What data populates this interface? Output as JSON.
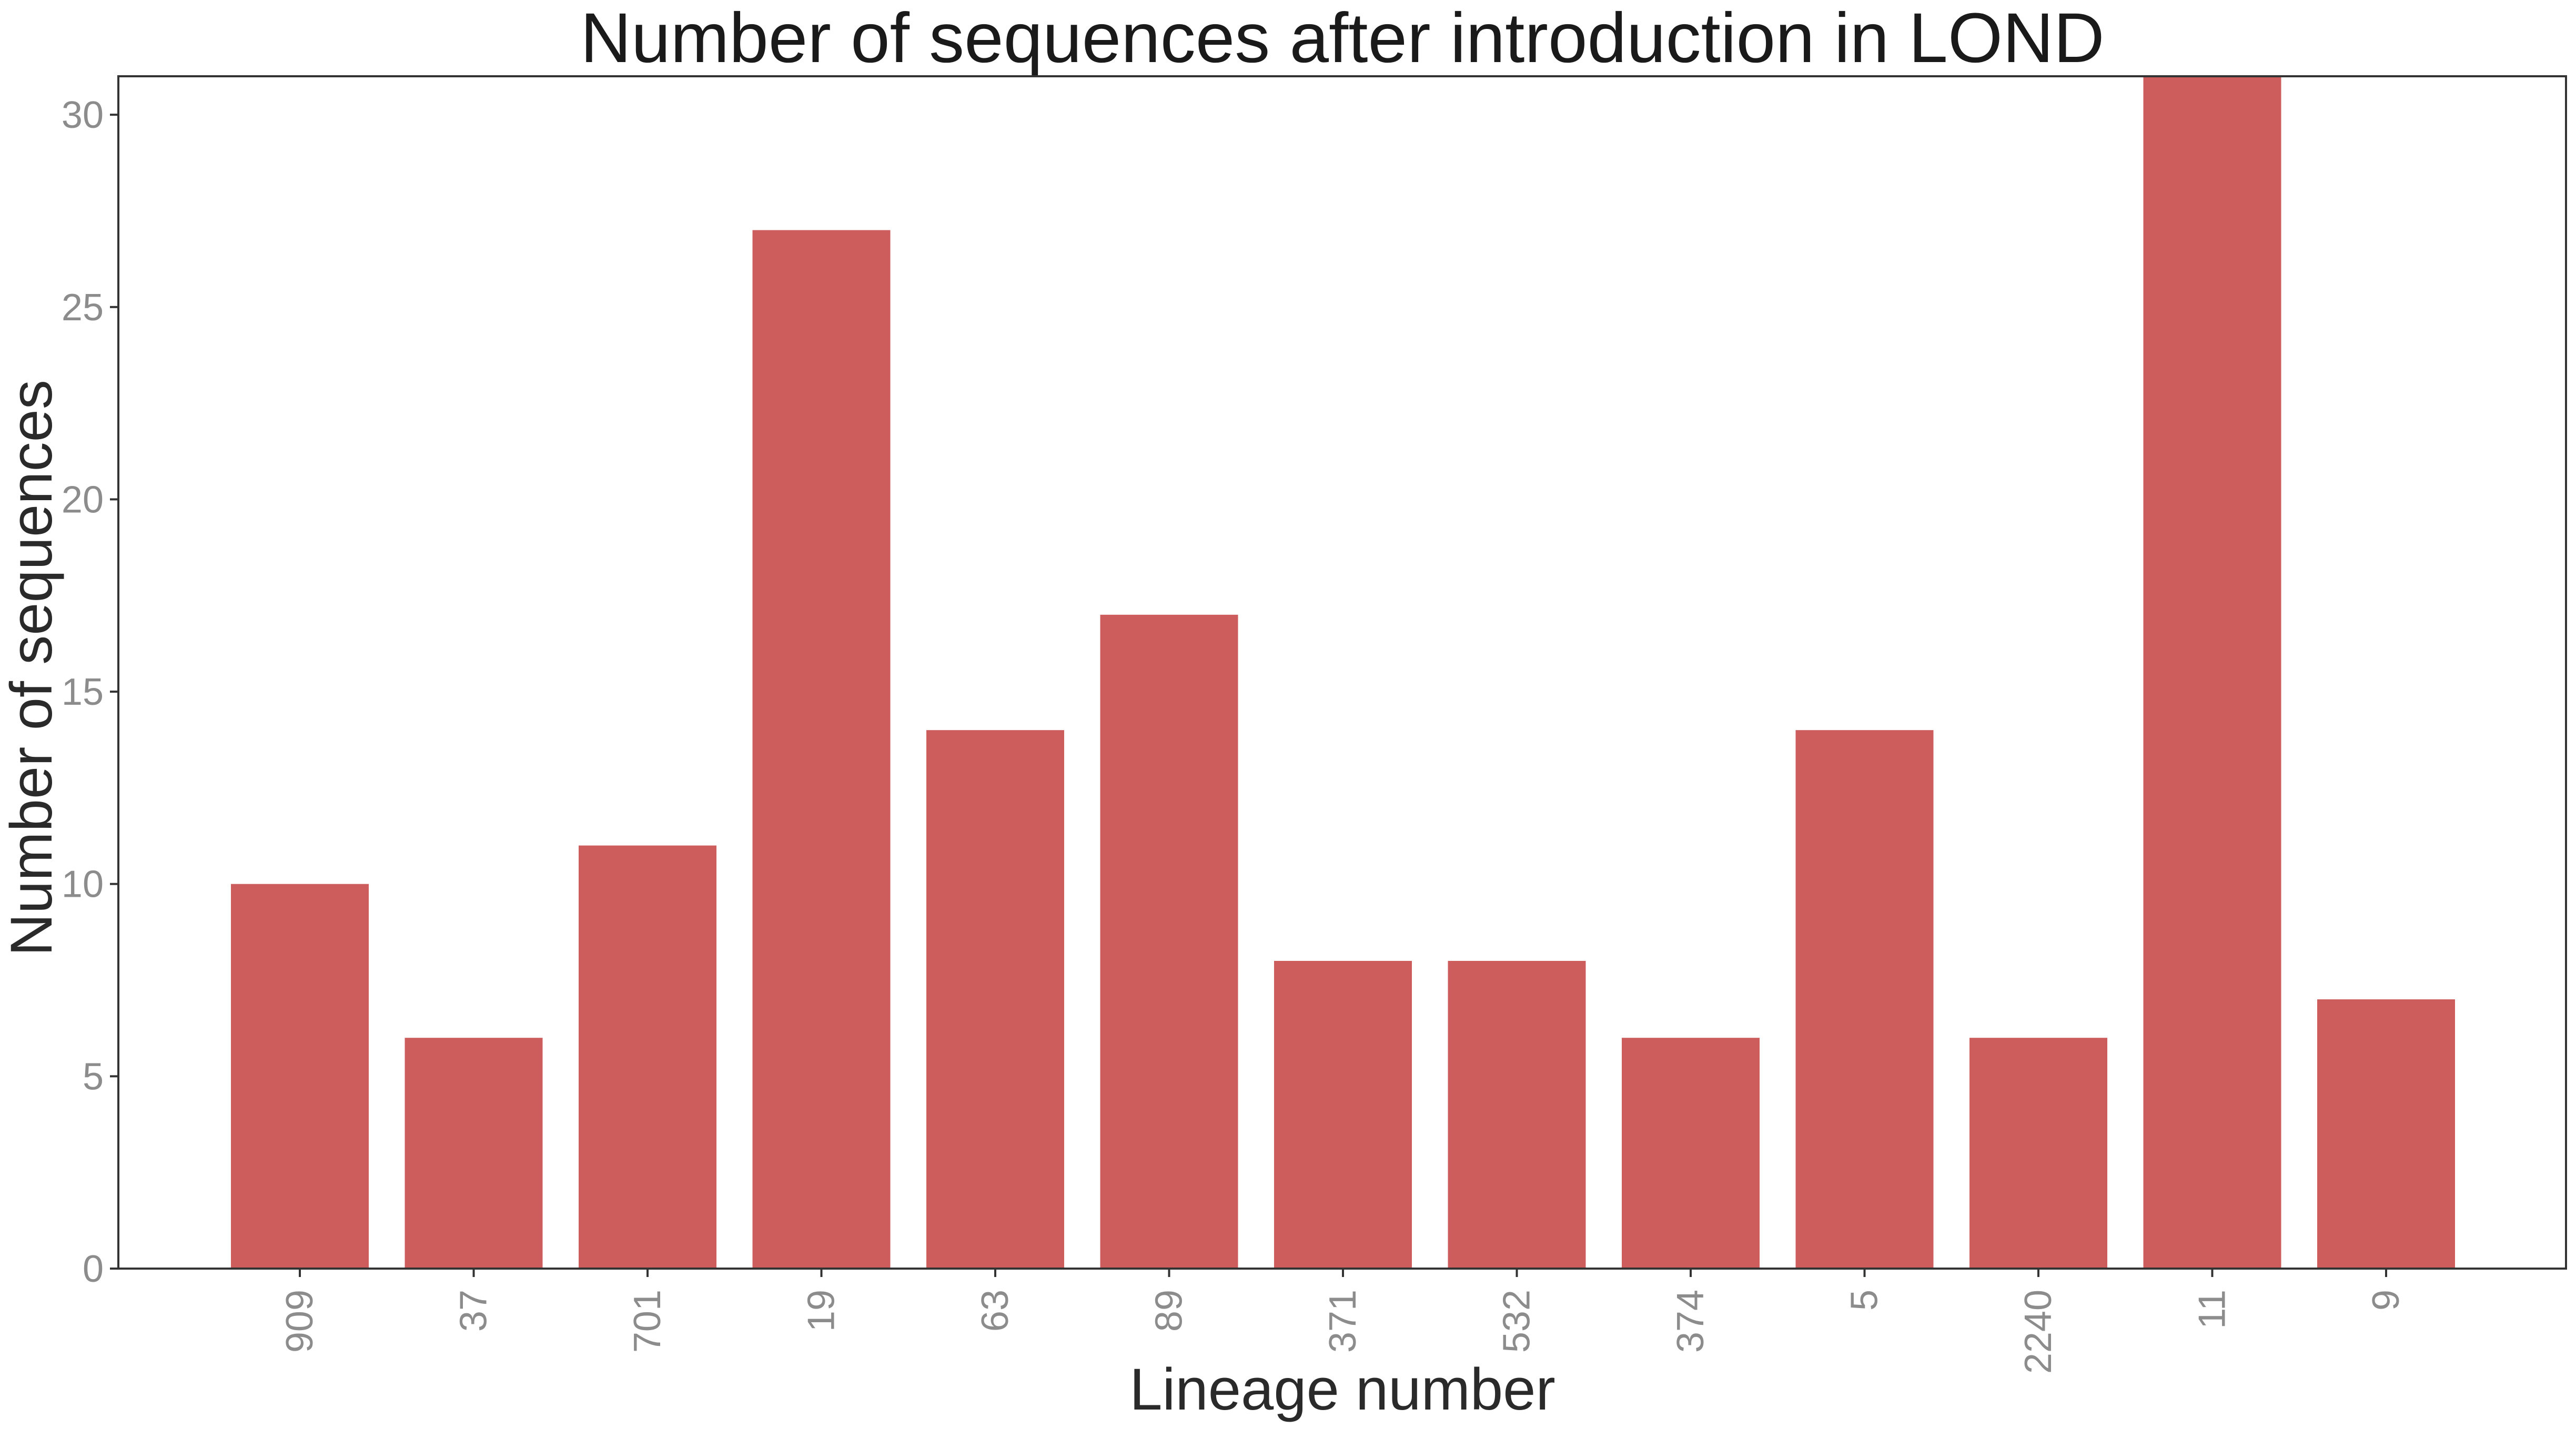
{
  "chart_data": {
    "type": "bar",
    "title": "Number of sequences after introduction in LOND",
    "xlabel": "Lineage number",
    "ylabel": "Number of sequences",
    "categories": [
      "909",
      "37",
      "701",
      "19",
      "63",
      "89",
      "371",
      "532",
      "374",
      "5",
      "2240",
      "11",
      "9"
    ],
    "values": [
      10,
      6,
      11,
      27,
      14,
      17,
      8,
      8,
      6,
      14,
      6,
      31,
      7
    ],
    "ylim": [
      0,
      31
    ],
    "yticks": [
      "0",
      "5",
      "10",
      "15",
      "20",
      "25",
      "30"
    ],
    "bar_color": "#CD5C5C",
    "grid": false,
    "legend": "none"
  }
}
